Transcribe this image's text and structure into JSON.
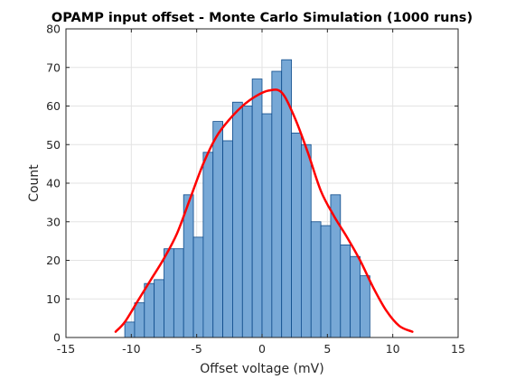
{
  "chart_data": {
    "type": "bar",
    "title": "OPAMP input offset - Monte Carlo Simulation (1000 runs)",
    "xlabel": "Offset voltage (mV)",
    "ylabel": "Count",
    "xlim": [
      -15,
      15
    ],
    "ylim": [
      0,
      80
    ],
    "xticks": [
      -15,
      -10,
      -5,
      0,
      5,
      10,
      15
    ],
    "yticks": [
      0,
      10,
      20,
      30,
      40,
      50,
      60,
      70,
      80
    ],
    "grid": true,
    "bin_width": 0.75,
    "series": [
      {
        "kind": "histogram",
        "bins": [
          {
            "x0": -10.5,
            "x1": -9.75,
            "count": 4
          },
          {
            "x0": -9.75,
            "x1": -9.0,
            "count": 9
          },
          {
            "x0": -9.0,
            "x1": -8.25,
            "count": 14
          },
          {
            "x0": -8.25,
            "x1": -7.5,
            "count": 15
          },
          {
            "x0": -7.5,
            "x1": -6.75,
            "count": 23
          },
          {
            "x0": -6.75,
            "x1": -6.0,
            "count": 23
          },
          {
            "x0": -6.0,
            "x1": -5.25,
            "count": 37
          },
          {
            "x0": -5.25,
            "x1": -4.5,
            "count": 26
          },
          {
            "x0": -4.5,
            "x1": -3.75,
            "count": 48
          },
          {
            "x0": -3.75,
            "x1": -3.0,
            "count": 56
          },
          {
            "x0": -3.0,
            "x1": -2.25,
            "count": 51
          },
          {
            "x0": -2.25,
            "x1": -1.5,
            "count": 61
          },
          {
            "x0": -1.5,
            "x1": -0.75,
            "count": 60
          },
          {
            "x0": -0.75,
            "x1": 0.0,
            "count": 67
          },
          {
            "x0": 0.0,
            "x1": 0.75,
            "count": 58
          },
          {
            "x0": 0.75,
            "x1": 1.5,
            "count": 69
          },
          {
            "x0": 1.5,
            "x1": 2.25,
            "count": 72
          },
          {
            "x0": 2.25,
            "x1": 3.0,
            "count": 53
          },
          {
            "x0": 3.0,
            "x1": 3.75,
            "count": 50
          },
          {
            "x0": 3.75,
            "x1": 4.5,
            "count": 30
          },
          {
            "x0": 4.5,
            "x1": 5.25,
            "count": 29
          },
          {
            "x0": 5.25,
            "x1": 6.0,
            "count": 37
          },
          {
            "x0": 6.0,
            "x1": 6.75,
            "count": 24
          },
          {
            "x0": 6.75,
            "x1": 7.5,
            "count": 21
          },
          {
            "x0": 7.5,
            "x1": 8.25,
            "count": 16
          }
        ],
        "color": "#77a8d6",
        "edge_color": "#0c4a8a"
      },
      {
        "kind": "density-curve",
        "color": "#ff0000",
        "x": [
          -11.2,
          -10.5,
          -9.5,
          -8.5,
          -7.5,
          -6.5,
          -5.5,
          -4.5,
          -3.5,
          -2.5,
          -1.5,
          -0.5,
          0.5,
          1.5,
          2.5,
          3.5,
          4.5,
          5.5,
          6.5,
          7.5,
          8.5,
          9.5,
          10.5,
          11.5
        ],
        "y": [
          1.5,
          4,
          9.5,
          15,
          20.5,
          27,
          36,
          45,
          52,
          56.5,
          60,
          62.5,
          64,
          63.5,
          57,
          48,
          38,
          31.5,
          26,
          20,
          13,
          7,
          3,
          1.5
        ]
      }
    ]
  }
}
